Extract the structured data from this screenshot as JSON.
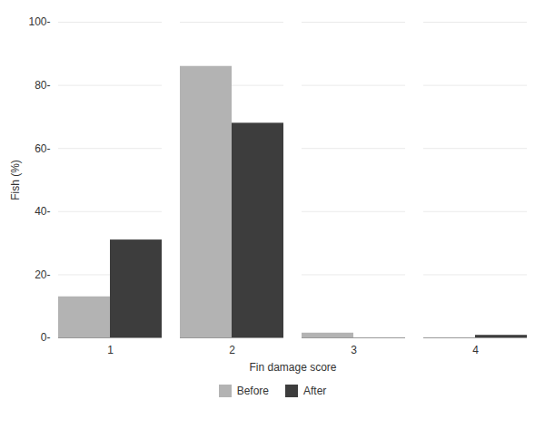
{
  "chart_data": {
    "type": "bar",
    "xlabel": "Fin damage score",
    "ylabel": "Fish (%)",
    "categories": [
      "1",
      "2",
      "3",
      "4"
    ],
    "series": [
      {
        "name": "Before",
        "color": "#b3b3b3",
        "values": [
          13,
          86,
          1.5,
          0.0
        ]
      },
      {
        "name": "After",
        "color": "#3d3d3d",
        "values": [
          31,
          68,
          0.0,
          0.8
        ]
      }
    ],
    "ylim": [
      0,
      100
    ],
    "yticks": [
      {
        "value": 0,
        "label": "0-"
      },
      {
        "value": 20,
        "label": "20-"
      },
      {
        "value": 40,
        "label": "40-"
      },
      {
        "value": 60,
        "label": "60-"
      },
      {
        "value": 80,
        "label": "80-"
      },
      {
        "value": 100,
        "label": "100-"
      }
    ],
    "grid": true,
    "legend": "bottom"
  }
}
